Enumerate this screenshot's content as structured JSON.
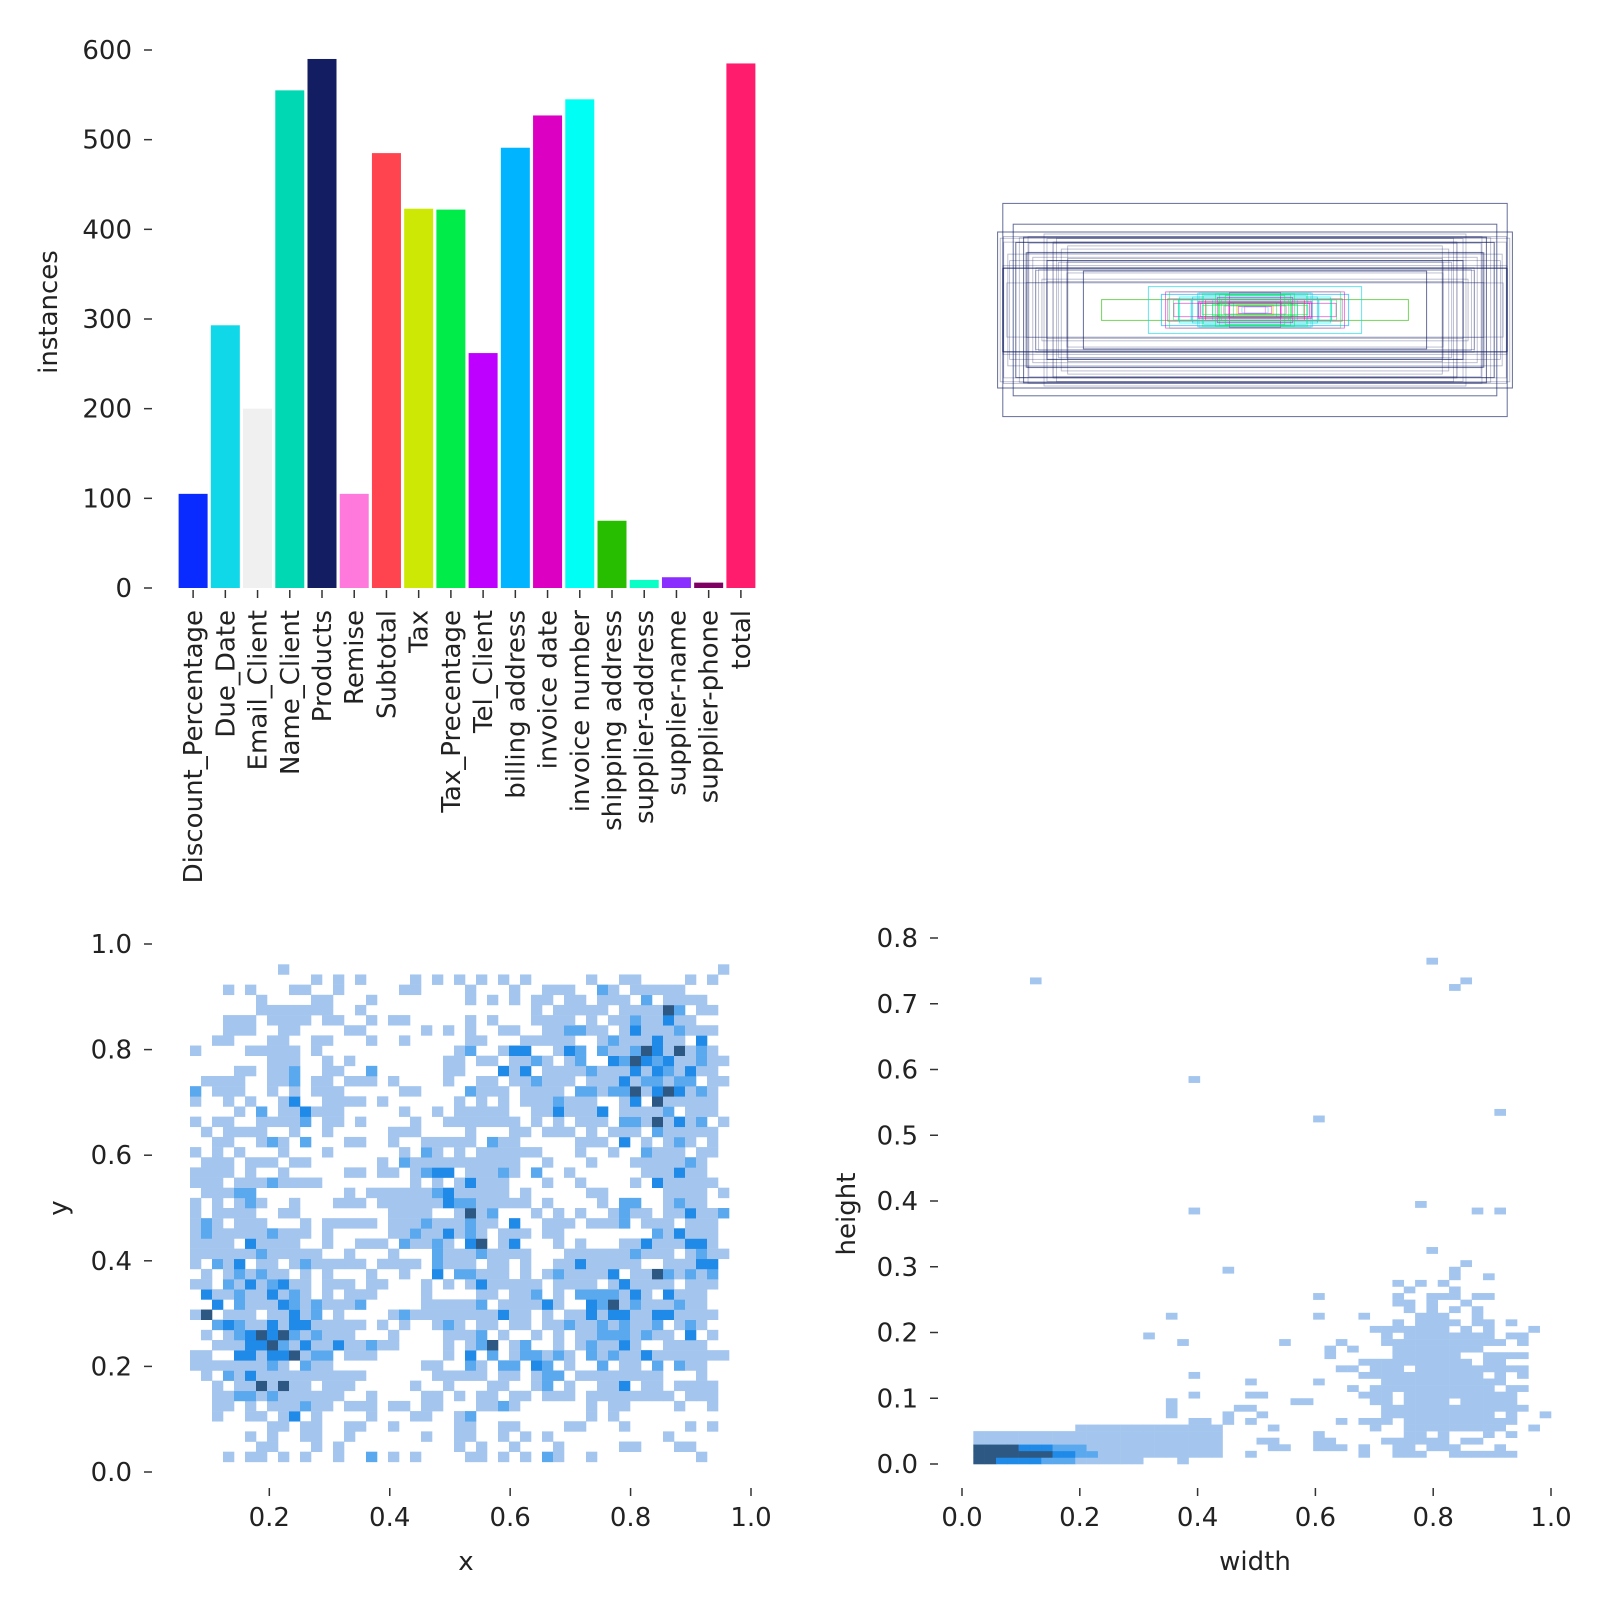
{
  "chart_data": [
    {
      "type": "bar",
      "ylabel": "instances",
      "ylim": [
        0,
        600
      ],
      "yticks": [
        0,
        100,
        200,
        300,
        400,
        500,
        600
      ],
      "categories": [
        "Discount_Percentage",
        "Due_Date",
        "Email_Client",
        "Name_Client",
        "Products",
        "Remise",
        "Subtotal",
        "Tax",
        "Tax_Precentage",
        "Tel_Client",
        "billing address",
        "invoice date",
        "invoice number",
        "shipping address",
        "supplier-address",
        "supplier-name",
        "supplier-phone",
        "total"
      ],
      "values": [
        105,
        293,
        200,
        555,
        590,
        105,
        485,
        423,
        422,
        262,
        491,
        527,
        545,
        75,
        9,
        12,
        6,
        585
      ],
      "colors": [
        "#0a2bff",
        "#10d8e8",
        "#f0f0f0",
        "#00d8b4",
        "#131e62",
        "#ff78dc",
        "#ff434f",
        "#cde804",
        "#00ec48",
        "#bd00ff",
        "#00b4ff",
        "#dc00c2",
        "#00fff4",
        "#28be00",
        "#0affc6",
        "#8a2dff",
        "#7d0062",
        "#ff1c6d"
      ],
      "grid": false
    },
    {
      "type": "box-overlay",
      "description_colors": [
        "#131e62",
        "#10d8e8",
        "#00ec48",
        "#dc00c2"
      ],
      "boxes": [
        {
          "w": 0.97,
          "h": 0.41,
          "color": "#131e62"
        },
        {
          "w": 0.93,
          "h": 0.33,
          "color": "#131e62"
        },
        {
          "w": 0.99,
          "h": 0.3,
          "color": "#131e62"
        },
        {
          "w": 0.92,
          "h": 0.26,
          "color": "#131e62"
        },
        {
          "w": 0.88,
          "h": 0.22,
          "color": "#131e62"
        },
        {
          "w": 0.8,
          "h": 0.19,
          "color": "#131e62"
        },
        {
          "w": 0.97,
          "h": 0.16,
          "color": "#131e62"
        },
        {
          "w": 0.66,
          "h": 0.15,
          "color": "#131e62"
        },
        {
          "w": 0.89,
          "h": 0.28,
          "color": "#131e62"
        },
        {
          "w": 0.59,
          "h": 0.04,
          "color": "#28be00"
        },
        {
          "w": 0.41,
          "h": 0.09,
          "color": "#10d8e8"
        },
        {
          "w": 0.36,
          "h": 0.06,
          "color": "#00b4ff"
        },
        {
          "w": 0.29,
          "h": 0.05,
          "color": "#00fff4"
        },
        {
          "w": 0.24,
          "h": 0.05,
          "color": "#10d8e8"
        },
        {
          "w": 0.19,
          "h": 0.04,
          "color": "#ff434f"
        },
        {
          "w": 0.14,
          "h": 0.03,
          "color": "#00ec48"
        },
        {
          "w": 0.1,
          "h": 0.03,
          "color": "#dc00c2"
        },
        {
          "w": 0.07,
          "h": 0.02,
          "color": "#cde804"
        },
        {
          "w": 0.04,
          "h": 0.015,
          "color": "#ff78dc"
        }
      ]
    },
    {
      "type": "heatmap",
      "xlabel": "x",
      "ylabel": "y",
      "xlim": [
        0.05,
        1.0
      ],
      "ylim": [
        0.0,
        1.0
      ],
      "xticks": [
        "0.2",
        "0.4",
        "0.6",
        "0.8",
        "1.0"
      ],
      "yticks": [
        "0.0",
        "0.2",
        "0.4",
        "0.6",
        "0.8",
        "1.0"
      ],
      "clusters": [
        {
          "x": 0.22,
          "y": 0.25,
          "weight": 3.2
        },
        {
          "x": 0.85,
          "y": 0.75,
          "weight": 3.0
        },
        {
          "x": 0.5,
          "y": 0.5,
          "weight": 2.0
        },
        {
          "x": 0.92,
          "y": 0.45,
          "weight": 1.8
        },
        {
          "x": 0.8,
          "y": 0.28,
          "weight": 2.2
        },
        {
          "x": 0.6,
          "y": 0.25,
          "weight": 1.6
        },
        {
          "x": 0.25,
          "y": 0.75,
          "weight": 1.2
        },
        {
          "x": 0.13,
          "y": 0.45,
          "weight": 1.3
        },
        {
          "x": 0.65,
          "y": 0.75,
          "weight": 1.2
        }
      ],
      "palette": [
        "#a4c6ee",
        "#5aa9ef",
        "#1f8ae8",
        "#2c5883"
      ]
    },
    {
      "type": "heatmap",
      "xlabel": "width",
      "ylabel": "height",
      "xlim": [
        0.0,
        1.0
      ],
      "ylim": [
        0.0,
        0.8
      ],
      "xticks": [
        "0.0",
        "0.2",
        "0.4",
        "0.6",
        "0.8",
        "1.0"
      ],
      "yticks": [
        "0.0",
        "0.1",
        "0.2",
        "0.3",
        "0.4",
        "0.5",
        "0.6",
        "0.7",
        "0.8"
      ],
      "palette": [
        "#a4c6ee",
        "#5aa9ef",
        "#1f8ae8",
        "#2c5883"
      ]
    }
  ]
}
